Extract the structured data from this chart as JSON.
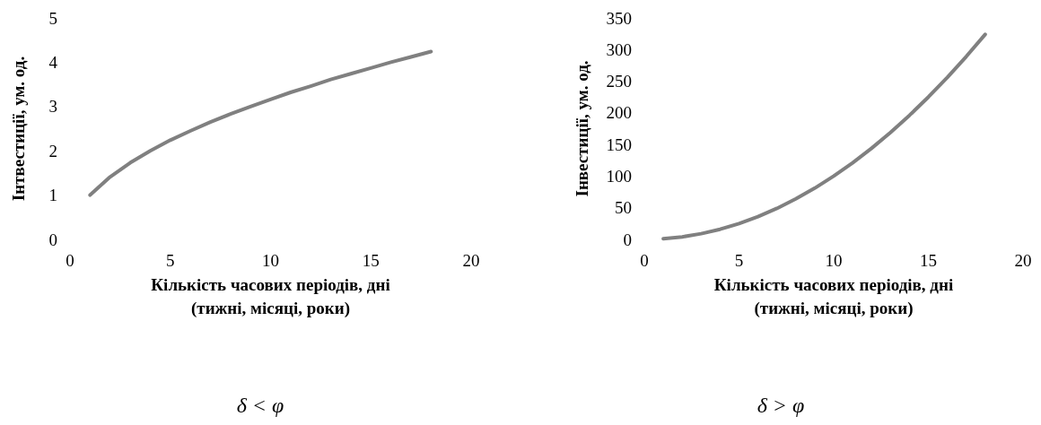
{
  "chart_data": [
    {
      "type": "line",
      "xlabel": "Кількість часових періодів, дні\n(тижні, місяці, роки)",
      "ylabel": "Інтвестиції, ум. од.",
      "annotations": [
        "δ < φ"
      ],
      "x": [
        1,
        2,
        3,
        4,
        5,
        6,
        7,
        8,
        9,
        10,
        11,
        12,
        13,
        14,
        15,
        16,
        17,
        18
      ],
      "series": [
        {
          "color": "#808080",
          "values": [
            1,
            1.41,
            1.73,
            2,
            2.24,
            2.45,
            2.65,
            2.83,
            3,
            3.16,
            3.32,
            3.46,
            3.61,
            3.74,
            3.87,
            4,
            4.12,
            4.24
          ]
        }
      ],
      "xlim": [
        0,
        20
      ],
      "xticks": [
        0,
        5,
        10,
        15,
        20
      ],
      "ylim": [
        0,
        5
      ],
      "yticks": [
        0,
        1,
        2,
        3,
        4,
        5
      ],
      "grid": false,
      "marker": "none",
      "line_style": "solid"
    },
    {
      "type": "line",
      "xlabel": "Кількість часових періодів, дні\n(тижні, місяці, роки)",
      "ylabel": "Інвестиції, ум. од.",
      "annotations": [
        "δ > φ"
      ],
      "x": [
        1,
        2,
        3,
        4,
        5,
        6,
        7,
        8,
        9,
        10,
        11,
        12,
        13,
        14,
        15,
        16,
        17,
        18
      ],
      "series": [
        {
          "color": "#808080",
          "values": [
            1,
            4,
            9,
            16,
            25,
            36,
            49,
            64,
            81,
            100,
            121,
            144,
            169,
            196,
            225,
            256,
            289,
            324
          ]
        }
      ],
      "xlim": [
        0,
        20
      ],
      "xticks": [
        0,
        5,
        10,
        15,
        20
      ],
      "ylim": [
        0,
        350
      ],
      "yticks": [
        0,
        50,
        100,
        150,
        200,
        250,
        300,
        350
      ],
      "grid": false,
      "marker": "none",
      "line_style": "solid"
    }
  ]
}
